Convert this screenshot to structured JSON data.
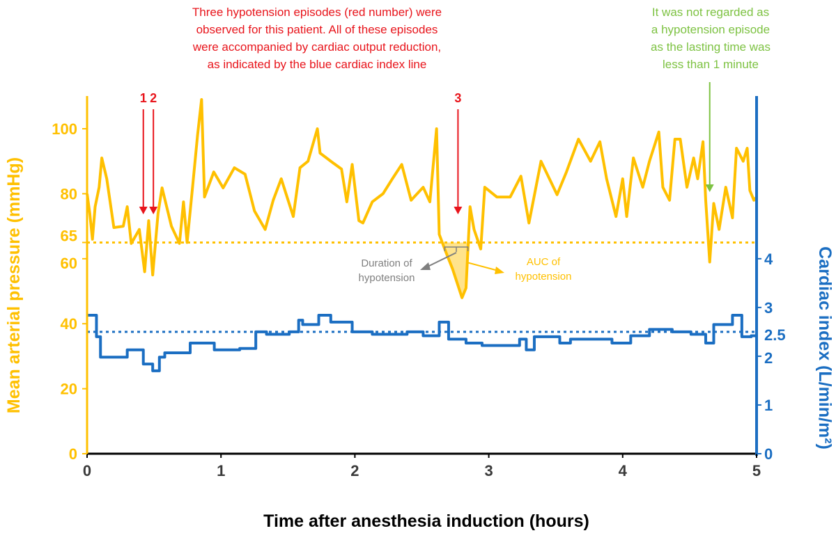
{
  "chart_data": {
    "type": "line",
    "xlabel": "Time after anesthesia induction (hours)",
    "ylabel_left": "Mean arterial pressure (mmHg)",
    "ylabel_right": "Cardiac index (L/min/m²)",
    "xlim": [
      0,
      5
    ],
    "ylim_left": [
      0,
      110
    ],
    "ylim_right": [
      0,
      7.33
    ],
    "x_ticks": [
      "0",
      "1",
      "2",
      "3",
      "4",
      "5"
    ],
    "left_ticks": [
      {
        "value": 0,
        "label": "0"
      },
      {
        "value": 20,
        "label": "20"
      },
      {
        "value": 40,
        "label": "40"
      },
      {
        "value": 60,
        "label": "60"
      },
      {
        "value": 65,
        "label": "65"
      },
      {
        "value": 80,
        "label": "80"
      },
      {
        "value": 100,
        "label": "100"
      }
    ],
    "right_ticks": [
      {
        "value": 0,
        "label": "0"
      },
      {
        "value": 1,
        "label": "1"
      },
      {
        "value": 2,
        "label": "2"
      },
      {
        "value": 2.5,
        "label": "2.5"
      },
      {
        "value": 3,
        "label": "3"
      },
      {
        "value": 4,
        "label": "4"
      }
    ],
    "grid": false,
    "colors": {
      "map": "#FFC000",
      "ci": "#1B6EC2",
      "episode": "#E8141B",
      "note": "#7DC242",
      "gray": "#7F7F7F",
      "axis": "#000000"
    },
    "thresholds": [
      {
        "axis": "left",
        "value": 65,
        "style": "dotted",
        "color": "#FFC000"
      },
      {
        "axis": "right",
        "value": 2.5,
        "style": "dotted",
        "color": "#1B6EC2"
      }
    ],
    "series": [
      {
        "axis": "left",
        "color": "#FFC000",
        "shape": "line",
        "x": [
          0,
          0.02,
          0.04,
          0.06,
          0.09,
          0.11,
          0.147,
          0.2,
          0.27,
          0.3,
          0.33,
          0.39,
          0.43,
          0.46,
          0.49,
          0.53,
          0.56,
          0.63,
          0.69,
          0.72,
          0.747,
          0.79,
          0.825,
          0.855,
          0.877,
          0.946,
          1.016,
          1.1,
          1.18,
          1.25,
          1.33,
          1.39,
          1.45,
          1.54,
          1.59,
          1.65,
          1.72,
          1.74,
          1.83,
          1.9,
          1.94,
          1.98,
          2.03,
          2.06,
          2.13,
          2.21,
          2.28,
          2.35,
          2.42,
          2.51,
          2.56,
          2.61,
          2.63,
          2.68,
          2.73,
          2.8,
          2.83,
          2.86,
          2.89,
          2.94,
          2.97,
          3.06,
          3.16,
          3.24,
          3.3,
          3.39,
          3.51,
          3.58,
          3.67,
          3.76,
          3.83,
          3.88,
          3.95,
          4.0,
          4.03,
          4.08,
          4.15,
          4.2,
          4.27,
          4.3,
          4.35,
          4.39,
          4.43,
          4.48,
          4.53,
          4.56,
          4.6,
          4.62,
          4.65,
          4.68,
          4.72,
          4.77,
          4.82,
          4.85,
          4.9,
          4.93,
          4.95,
          4.98,
          5.0
        ],
        "y": [
          80,
          74,
          66,
          76,
          82,
          91,
          84.6,
          69.6,
          70,
          76,
          64.7,
          69,
          56,
          71.7,
          55,
          74,
          81.8,
          70,
          64.7,
          77.5,
          65,
          83,
          98,
          109,
          79,
          86.7,
          81.8,
          88,
          86,
          74.7,
          69,
          78,
          84.6,
          73,
          88,
          90,
          100,
          92.5,
          89.7,
          87.6,
          77.5,
          89,
          71.7,
          71,
          77.5,
          80,
          84.6,
          89,
          78,
          82,
          77.5,
          100,
          67.5,
          62,
          56.8,
          48,
          51,
          76,
          69,
          63,
          82,
          79,
          79,
          85.4,
          71,
          90,
          79.7,
          86.7,
          96.8,
          90,
          96,
          84.6,
          73,
          84.6,
          73,
          91,
          82,
          90,
          99,
          82,
          78,
          96.8,
          96.8,
          82,
          91,
          84.6,
          96,
          78,
          59,
          77,
          69,
          82,
          72.6,
          94,
          90,
          94,
          81,
          78,
          79
        ]
      },
      {
        "axis": "right",
        "color": "#1B6EC2",
        "shape": "step",
        "x": [
          0,
          0.04,
          0.07,
          0.1,
          0.23,
          0.3,
          0.42,
          0.49,
          0.54,
          0.58,
          0.73,
          0.77,
          0.87,
          0.95,
          1.14,
          1.26,
          1.34,
          1.51,
          1.58,
          1.61,
          1.73,
          1.82,
          1.98,
          2.13,
          2.39,
          2.51,
          2.63,
          2.7,
          2.83,
          2.95,
          3.16,
          3.23,
          3.28,
          3.34,
          3.53,
          3.61,
          3.92,
          4.06,
          4.2,
          4.37,
          4.51,
          4.62,
          4.68,
          4.82,
          4.89,
          4.96,
          5.0
        ],
        "y": [
          2.84,
          2.84,
          2.4,
          1.98,
          1.98,
          2.13,
          1.84,
          1.7,
          1.98,
          2.07,
          2.07,
          2.27,
          2.27,
          2.13,
          2.16,
          2.5,
          2.45,
          2.5,
          2.74,
          2.65,
          2.84,
          2.7,
          2.5,
          2.45,
          2.5,
          2.42,
          2.7,
          2.35,
          2.27,
          2.22,
          2.22,
          2.35,
          2.13,
          2.4,
          2.27,
          2.35,
          2.27,
          2.42,
          2.55,
          2.5,
          2.45,
          2.27,
          2.65,
          2.84,
          2.4,
          2.42,
          2.42
        ]
      }
    ],
    "episodes": [
      {
        "label": "1",
        "x": 0.42
      },
      {
        "label": "2",
        "x": 0.49
      },
      {
        "label": "3",
        "x": 2.77
      }
    ],
    "auc_region": {
      "x_start": 2.65,
      "x_end": 2.86,
      "threshold": 65
    },
    "annotations": {
      "episodes_note": [
        "Three hypotension episodes (red number) were",
        "observed for this patient. All of these episodes",
        "were accompanied by cardiac output reduction,",
        "as indicated by the blue cardiac index line"
      ],
      "not_episode_note": [
        "It was not regarded as",
        "a hypotension episode",
        "as the lasting time was",
        "less than 1 minute"
      ],
      "not_episode_x": 4.65,
      "duration_label": [
        "Duration of",
        "hypotension"
      ],
      "auc_label": [
        "AUC of",
        "hypotension"
      ]
    }
  }
}
